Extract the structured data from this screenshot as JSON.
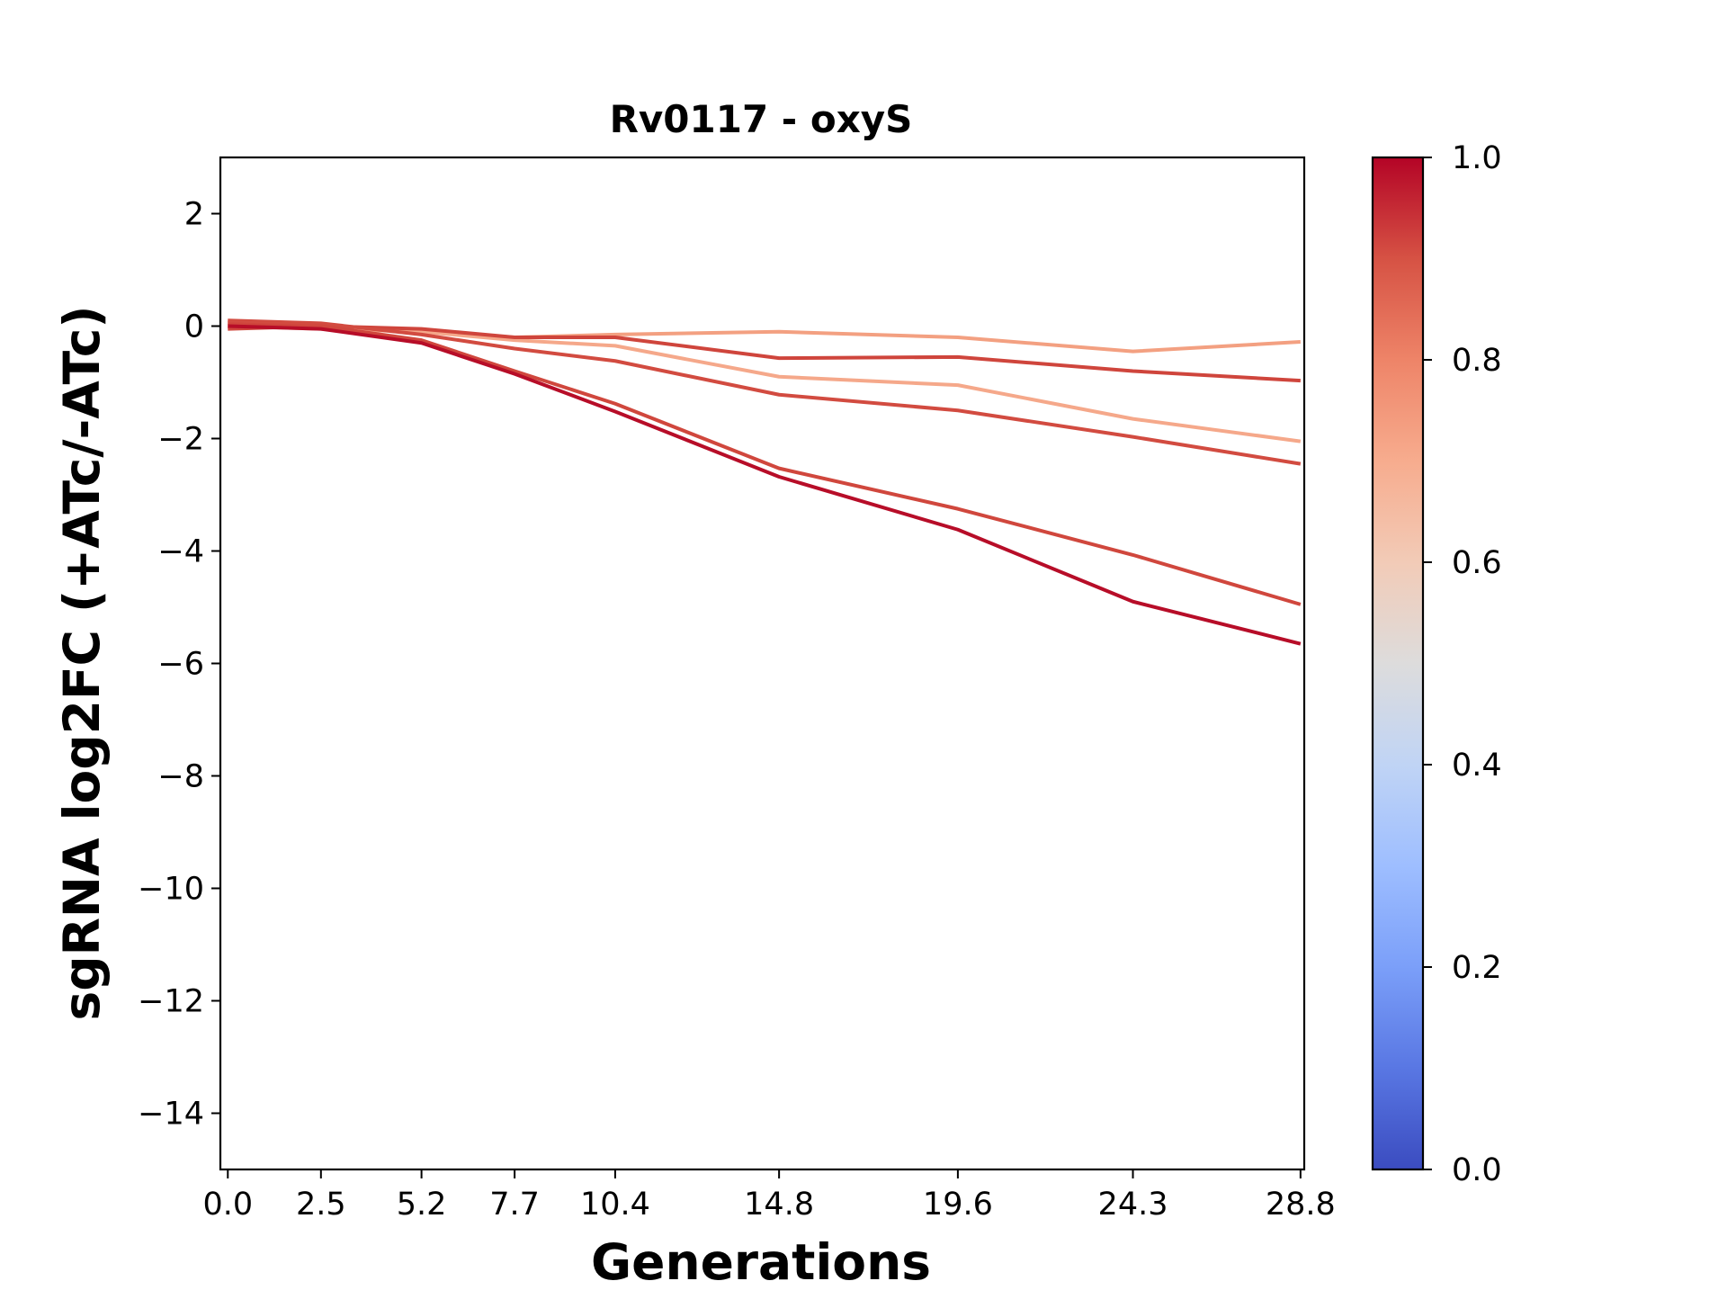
{
  "chart_data": {
    "type": "line",
    "title": "Rv0117 - oxyS",
    "xlabel": "Generations",
    "ylabel": "sgRNA log2FC (+ATc/-ATc)",
    "x": [
      0.0,
      2.5,
      5.2,
      7.7,
      10.4,
      14.8,
      19.6,
      24.3,
      28.8
    ],
    "x_tick_labels": [
      "0.0",
      "2.5",
      "5.2",
      "7.7",
      "10.4",
      "14.8",
      "19.6",
      "24.3",
      "28.8"
    ],
    "xlim": [
      -0.2,
      28.9
    ],
    "ylim": [
      -15,
      3
    ],
    "y_ticks": [
      2,
      0,
      -2,
      -4,
      -6,
      -8,
      -10,
      -12,
      -14
    ],
    "y_tick_labels": [
      "2",
      "0",
      "−2",
      "−4",
      "−6",
      "−8",
      "−10",
      "−12",
      "−14"
    ],
    "grid": false,
    "legend": false,
    "colormap": "coolwarm",
    "colorbar": {
      "ticks": [
        0.0,
        0.2,
        0.4,
        0.6,
        0.8,
        1.0
      ],
      "tick_labels": [
        "0.0",
        "0.2",
        "0.4",
        "0.6",
        "0.8",
        "1.0"
      ],
      "range": [
        0,
        1
      ],
      "stops": [
        {
          "v": 0.0,
          "color": "#3b4cc0"
        },
        {
          "v": 0.1,
          "color": "#5977e3"
        },
        {
          "v": 0.2,
          "color": "#7b9ff9"
        },
        {
          "v": 0.3,
          "color": "#9ebeff"
        },
        {
          "v": 0.4,
          "color": "#c0d4f5"
        },
        {
          "v": 0.5,
          "color": "#dddcdc"
        },
        {
          "v": 0.6,
          "color": "#f2cbb7"
        },
        {
          "v": 0.7,
          "color": "#f7ac8e"
        },
        {
          "v": 0.8,
          "color": "#ee8468"
        },
        {
          "v": 0.9,
          "color": "#d65244"
        },
        {
          "v": 1.0,
          "color": "#b40426"
        }
      ]
    },
    "series": [
      {
        "color_value": 0.75,
        "color": "#f3a081",
        "values": [
          0.05,
          0.0,
          -0.1,
          -0.2,
          -0.15,
          -0.1,
          -0.2,
          -0.45,
          -0.28
        ]
      },
      {
        "color_value": 0.72,
        "color": "#f5a88a",
        "values": [
          0.0,
          -0.05,
          -0.1,
          -0.25,
          -0.35,
          -0.9,
          -1.05,
          -1.65,
          -2.05
        ]
      },
      {
        "color_value": 0.92,
        "color": "#cf453c",
        "values": [
          0.05,
          0.0,
          -0.05,
          -0.2,
          -0.2,
          -0.57,
          -0.55,
          -0.8,
          -0.97
        ]
      },
      {
        "color_value": 0.9,
        "color": "#d24b40",
        "values": [
          0.1,
          0.05,
          -0.15,
          -0.4,
          -0.62,
          -1.22,
          -1.5,
          -1.97,
          -2.45
        ]
      },
      {
        "color_value": 0.9,
        "color": "#d0473d",
        "values": [
          -0.05,
          0.0,
          -0.25,
          -0.8,
          -1.38,
          -2.53,
          -3.25,
          -4.07,
          -4.95
        ]
      },
      {
        "color_value": 0.99,
        "color": "#b70d28",
        "values": [
          0.0,
          -0.05,
          -0.3,
          -0.85,
          -1.52,
          -2.68,
          -3.62,
          -4.9,
          -5.65
        ]
      }
    ]
  }
}
